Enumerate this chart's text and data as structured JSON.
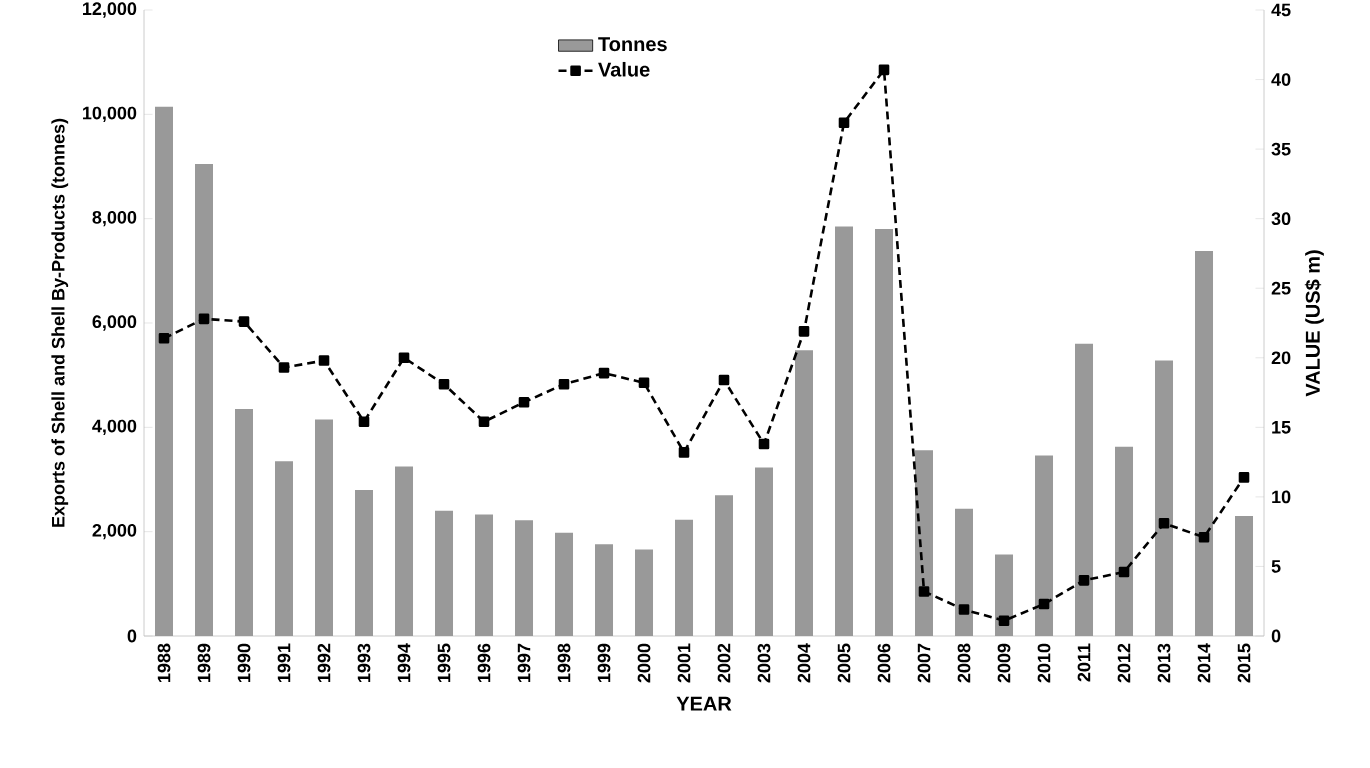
{
  "chart_data": {
    "type": "bar",
    "xlabel": "YEAR",
    "ylabel": "Exports of Shell and Shell By-Products (tonnes)",
    "y2label": "VALUE (US$ m)",
    "categories": [
      "1988",
      "1989",
      "1990",
      "1991",
      "1992",
      "1993",
      "1994",
      "1995",
      "1996",
      "1997",
      "1998",
      "1999",
      "2000",
      "2001",
      "2002",
      "2003",
      "2004",
      "2005",
      "2006",
      "2007",
      "2008",
      "2009",
      "2010",
      "2011",
      "2012",
      "2013",
      "2014",
      "2015"
    ],
    "series": [
      {
        "name": "Tonnes",
        "color": "#999999",
        "values": [
          10150,
          9050,
          4350,
          3350,
          4150,
          2800,
          3250,
          2400,
          2330,
          2220,
          1980,
          1760,
          1660,
          2230,
          2700,
          3230,
          5480,
          7850,
          7800,
          3560,
          2440,
          1560,
          3460,
          5600,
          3630,
          5280,
          7380,
          2300
        ]
      },
      {
        "name": "Value",
        "type": "line",
        "axis": "y2",
        "color": "#000000",
        "marker": "square",
        "line_style": "dashed",
        "values": [
          21.4,
          22.8,
          22.6,
          19.3,
          19.8,
          15.4,
          20.0,
          18.1,
          15.4,
          16.8,
          18.1,
          18.9,
          18.2,
          13.2,
          18.4,
          13.8,
          21.9,
          36.9,
          40.7,
          3.2,
          1.9,
          1.1,
          2.3,
          4.0,
          4.6,
          8.1,
          7.1,
          11.4
        ]
      }
    ],
    "ylim": [
      0,
      12000
    ],
    "yticks": [
      0,
      {
        "value": 2000,
        "label": "2,000"
      },
      {
        "value": 4000,
        "label": "4,000"
      },
      {
        "value": 6000,
        "label": "6,000"
      },
      {
        "value": 8000,
        "label": "8,000"
      },
      {
        "value": 10000,
        "label": "10,000"
      },
      {
        "value": 12000,
        "label": "12,000"
      }
    ],
    "y2lim": [
      0,
      45
    ],
    "y2ticks": [
      0,
      5,
      10,
      15,
      20,
      25,
      30,
      35,
      40,
      45
    ],
    "legend": "top",
    "grid": false
  }
}
